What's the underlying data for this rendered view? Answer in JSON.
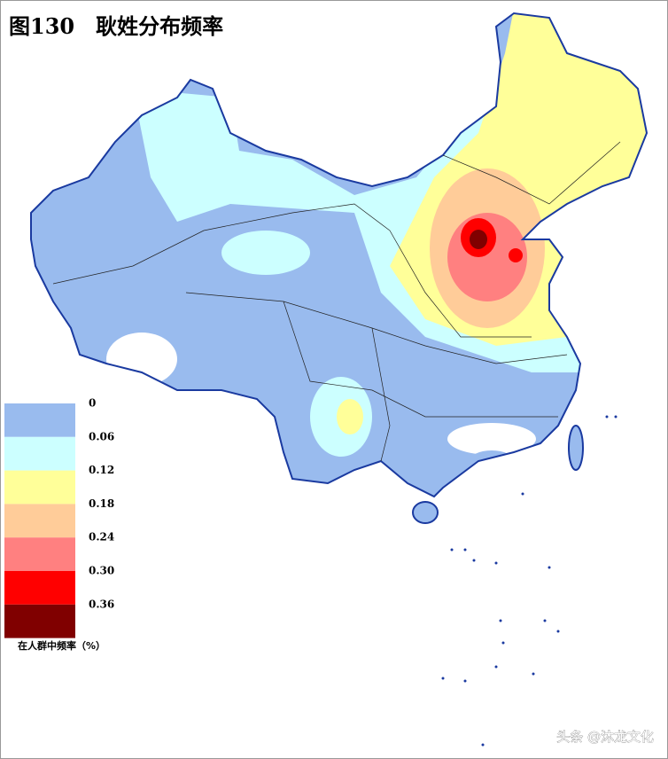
{
  "title": "图130　耿姓分布频率",
  "legend": {
    "colors": [
      "#99bbee",
      "#ccffff",
      "#ffff99",
      "#ffcc99",
      "#ff8080",
      "#ff0000",
      "#800000"
    ],
    "ticks": [
      0,
      0.06,
      0.12,
      0.18,
      0.24,
      {
        "value": 0.3,
        "label": "0.30"
      },
      0.36
    ],
    "caption": "在人群中频率（%）"
  },
  "watermark": "头条 @沐龙文化"
}
